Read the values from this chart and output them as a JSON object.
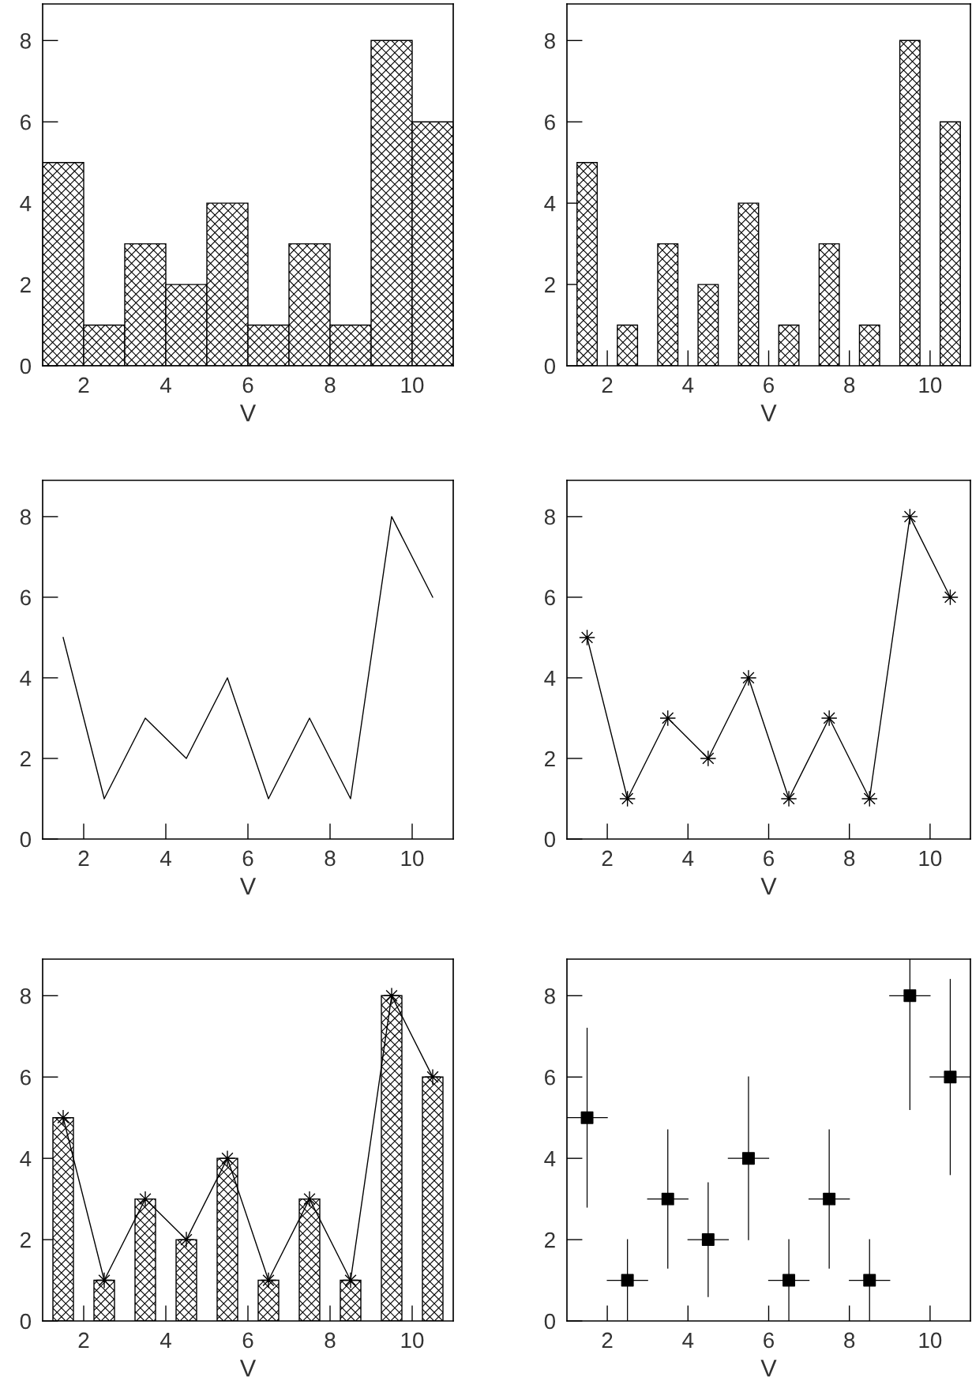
{
  "chart_data": [
    {
      "type": "histogram",
      "bins": [
        1,
        2,
        3,
        4,
        5,
        6,
        7,
        8,
        9,
        10,
        11
      ],
      "values": [
        5,
        1,
        3,
        2,
        4,
        1,
        3,
        1,
        8,
        6
      ],
      "xlabel": "V",
      "xlim": [
        1,
        11
      ],
      "xticks": [
        2,
        4,
        6,
        8,
        10
      ],
      "ylim": [
        0,
        8.9
      ],
      "yticks": [
        0,
        2,
        4,
        6,
        8
      ]
    },
    {
      "type": "bar",
      "x": [
        1.5,
        2.5,
        3.5,
        4.5,
        5.5,
        6.5,
        7.5,
        8.5,
        9.5,
        10.5
      ],
      "values": [
        5,
        1,
        3,
        2,
        4,
        1,
        3,
        1,
        8,
        6
      ],
      "xlabel": "V",
      "xlim": [
        1,
        11
      ],
      "xticks": [
        2,
        4,
        6,
        8,
        10
      ],
      "ylim": [
        0,
        8.9
      ],
      "yticks": [
        0,
        2,
        4,
        6,
        8
      ]
    },
    {
      "type": "line",
      "x": [
        1.5,
        2.5,
        3.5,
        4.5,
        5.5,
        6.5,
        7.5,
        8.5,
        9.5,
        10.5
      ],
      "values": [
        5,
        1,
        3,
        2,
        4,
        1,
        3,
        1,
        8,
        6
      ],
      "xlabel": "V",
      "xlim": [
        1,
        11
      ],
      "xticks": [
        2,
        4,
        6,
        8,
        10
      ],
      "ylim": [
        0,
        8.9
      ],
      "yticks": [
        0,
        2,
        4,
        6,
        8
      ]
    },
    {
      "type": "line",
      "marker": "cross",
      "x": [
        1.5,
        2.5,
        3.5,
        4.5,
        5.5,
        6.5,
        7.5,
        8.5,
        9.5,
        10.5
      ],
      "values": [
        5,
        1,
        3,
        2,
        4,
        1,
        3,
        1,
        8,
        6
      ],
      "xlabel": "V",
      "xlim": [
        1,
        11
      ],
      "xticks": [
        2,
        4,
        6,
        8,
        10
      ],
      "ylim": [
        0,
        8.9
      ],
      "yticks": [
        0,
        2,
        4,
        6,
        8
      ]
    },
    {
      "type": "bar",
      "x": [
        1.5,
        2.5,
        3.5,
        4.5,
        5.5,
        6.5,
        7.5,
        8.5,
        9.5,
        10.5
      ],
      "series": [
        {
          "type": "bar",
          "values": [
            5,
            1,
            3,
            2,
            4,
            1,
            3,
            1,
            8,
            6
          ]
        },
        {
          "type": "line",
          "marker": "cross",
          "values": [
            5,
            1,
            3,
            2,
            4,
            1,
            3,
            1,
            8,
            6
          ]
        }
      ],
      "xlabel": "V",
      "xlim": [
        1,
        11
      ],
      "xticks": [
        2,
        4,
        6,
        8,
        10
      ],
      "ylim": [
        0,
        8.9
      ],
      "yticks": [
        0,
        2,
        4,
        6,
        8
      ]
    },
    {
      "type": "scatter",
      "marker": "square",
      "x": [
        1.5,
        2.5,
        3.5,
        4.5,
        5.5,
        6.5,
        7.5,
        8.5,
        9.5,
        10.5
      ],
      "values": [
        5,
        1,
        3,
        2,
        4,
        1,
        3,
        1,
        8,
        6
      ],
      "errors": [
        [
          2.8,
          7.2
        ],
        [
          0,
          2
        ],
        [
          1.3,
          4.7
        ],
        [
          0.6,
          3.4
        ],
        [
          2,
          6
        ],
        [
          0,
          2
        ],
        [
          1.3,
          4.7
        ],
        [
          0,
          2
        ],
        [
          5.2,
          8.9
        ],
        [
          3.6,
          8.4
        ]
      ],
      "xerrors": [
        0.5,
        0.5,
        0.5,
        0.5,
        0.5,
        0.5,
        0.5,
        0.5,
        0.5,
        0.5
      ],
      "xlabel": "V",
      "xlim": [
        1,
        11
      ],
      "xticks": [
        2,
        4,
        6,
        8,
        10
      ],
      "ylim": [
        0,
        8.9
      ],
      "yticks": [
        0,
        2,
        4,
        6,
        8
      ]
    }
  ]
}
